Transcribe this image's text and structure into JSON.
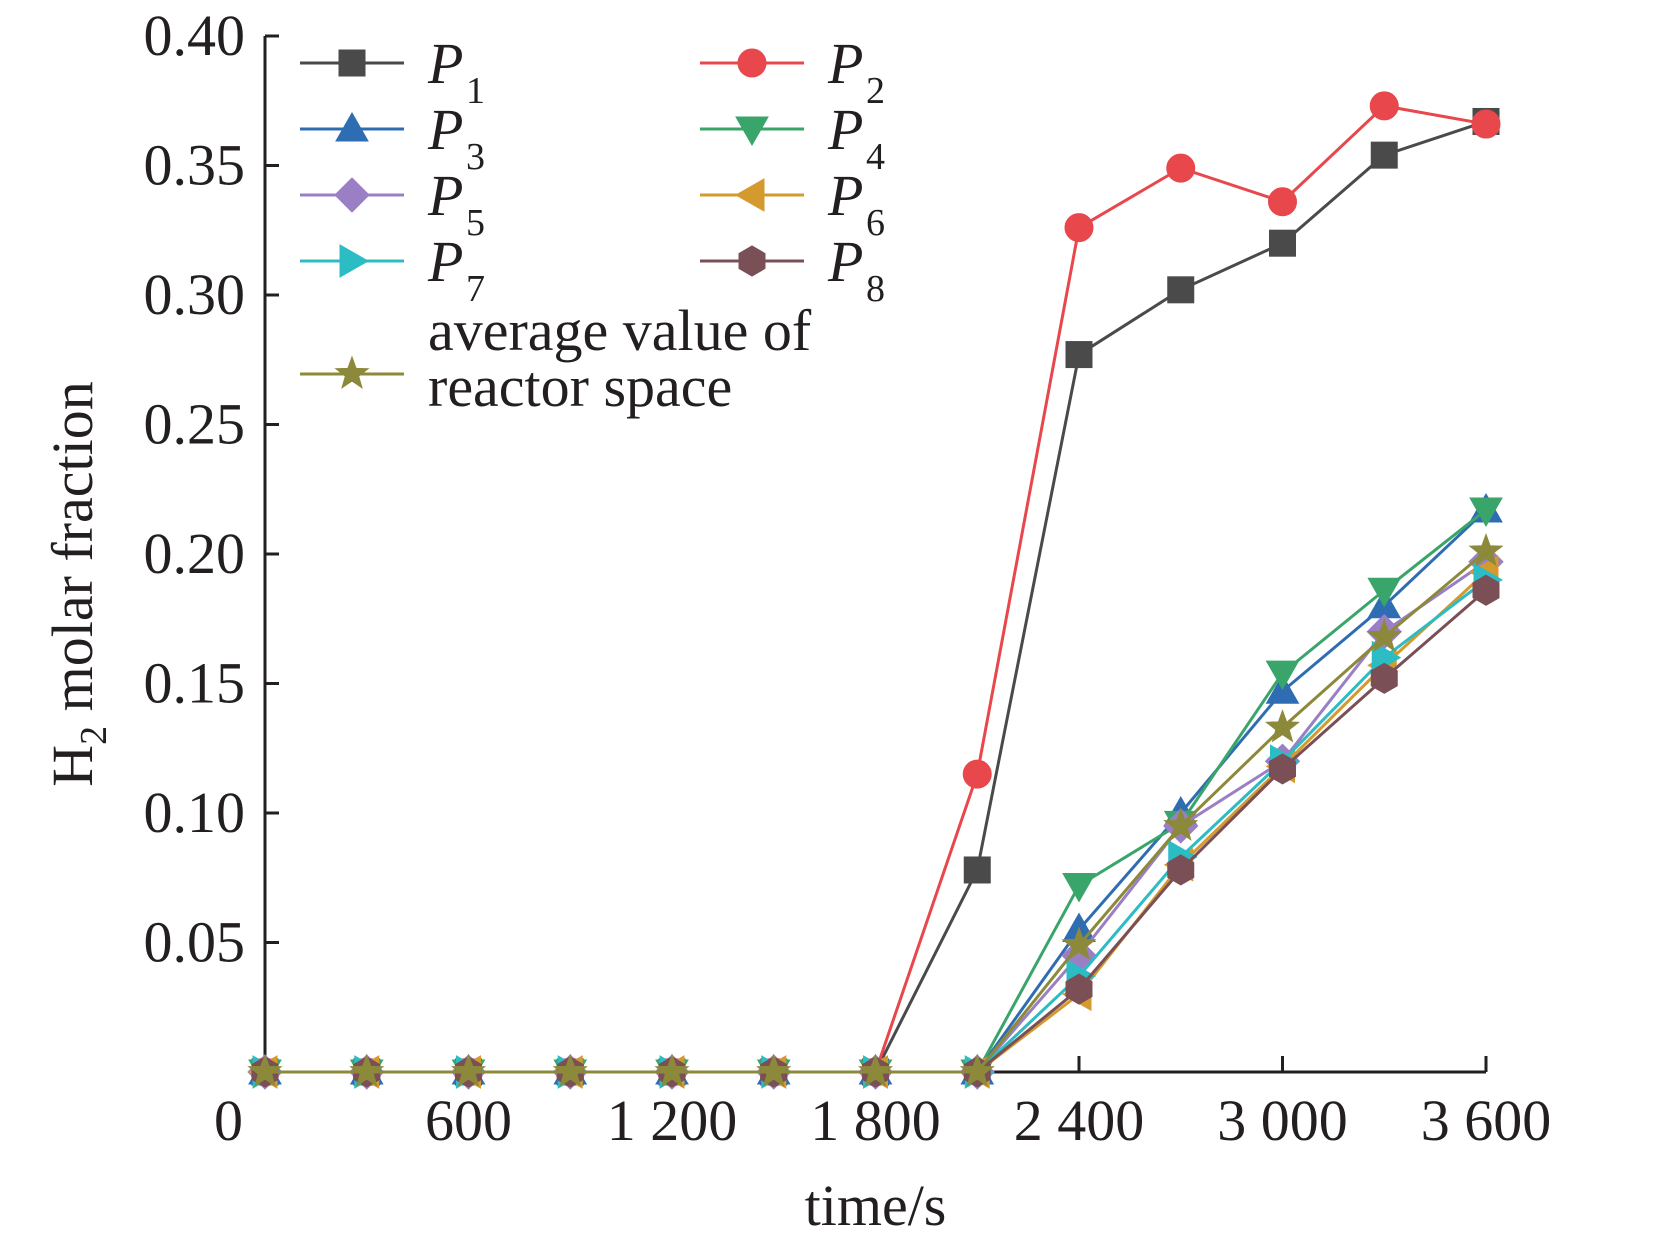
{
  "chart_data": {
    "type": "line",
    "title": "",
    "xlabel": "time/s",
    "ylabel": "H",
    "ylabel_sub": "2",
    "ylabel_rest": " molar fraction",
    "xlim": [
      0,
      3600
    ],
    "ylim": [
      0,
      0.4
    ],
    "x_ticks": [
      0,
      600,
      1200,
      1800,
      2400,
      3000,
      3600
    ],
    "x_tick_labels": [
      "0",
      "600",
      "1 200",
      "1 800",
      "2 400",
      "3 000",
      "3 600"
    ],
    "y_ticks": [
      0.05,
      0.1,
      0.15,
      0.2,
      0.25,
      0.3,
      0.35,
      0.4
    ],
    "y_tick_labels": [
      "0.05",
      "0.10",
      "0.15",
      "0.20",
      "0.25",
      "0.30",
      "0.35",
      "0.40"
    ],
    "grid": false,
    "legend_position": "top-left",
    "x": [
      0,
      300,
      600,
      900,
      1200,
      1500,
      1800,
      2100,
      2400,
      2700,
      3000,
      3300,
      3600
    ],
    "series": [
      {
        "name": "P",
        "sub": "1",
        "marker": "square",
        "color": "#4a4a4a",
        "values": [
          0,
          0,
          0,
          0,
          0,
          0,
          0,
          0.078,
          0.277,
          0.302,
          0.32,
          0.354,
          0.367
        ]
      },
      {
        "name": "P",
        "sub": "2",
        "marker": "circle",
        "color": "#e8474c",
        "values": [
          0,
          0,
          0,
          0,
          0,
          0,
          0,
          0.115,
          0.326,
          0.349,
          0.336,
          0.373,
          0.366
        ]
      },
      {
        "name": "P",
        "sub": "3",
        "marker": "triangle-up",
        "color": "#2f6db3",
        "values": [
          0,
          0,
          0,
          0,
          0,
          0,
          0,
          0,
          0.055,
          0.1,
          0.147,
          0.18,
          0.217
        ]
      },
      {
        "name": "P",
        "sub": "4",
        "marker": "triangle-down",
        "color": "#3aa56a",
        "values": [
          0,
          0,
          0,
          0,
          0,
          0,
          0,
          0,
          0.072,
          0.096,
          0.154,
          0.186,
          0.217
        ]
      },
      {
        "name": "P",
        "sub": "5",
        "marker": "diamond",
        "color": "#9a7fc4",
        "values": [
          0,
          0,
          0,
          0,
          0,
          0,
          0,
          0,
          0.045,
          0.095,
          0.12,
          0.17,
          0.197
        ]
      },
      {
        "name": "P",
        "sub": "6",
        "marker": "triangle-left",
        "color": "#d49a2e",
        "values": [
          0,
          0,
          0,
          0,
          0,
          0,
          0,
          0,
          0.03,
          0.08,
          0.118,
          0.157,
          0.193
        ]
      },
      {
        "name": "P",
        "sub": "7",
        "marker": "triangle-right",
        "color": "#2bbcc4",
        "values": [
          0,
          0,
          0,
          0,
          0,
          0,
          0,
          0,
          0.037,
          0.083,
          0.12,
          0.16,
          0.19
        ]
      },
      {
        "name": "P",
        "sub": "8",
        "marker": "hexagon",
        "color": "#7a4f55",
        "values": [
          0,
          0,
          0,
          0,
          0,
          0,
          0,
          0,
          0.032,
          0.078,
          0.117,
          0.152,
          0.186
        ]
      },
      {
        "name": "average value of reactor space",
        "name_lines": [
          "average value of",
          "reactor space"
        ],
        "sub": "",
        "marker": "star",
        "color": "#8c8a3a",
        "values": [
          0,
          0,
          0,
          0,
          0,
          0,
          0,
          0,
          0.049,
          0.095,
          0.133,
          0.168,
          0.201
        ]
      }
    ]
  }
}
